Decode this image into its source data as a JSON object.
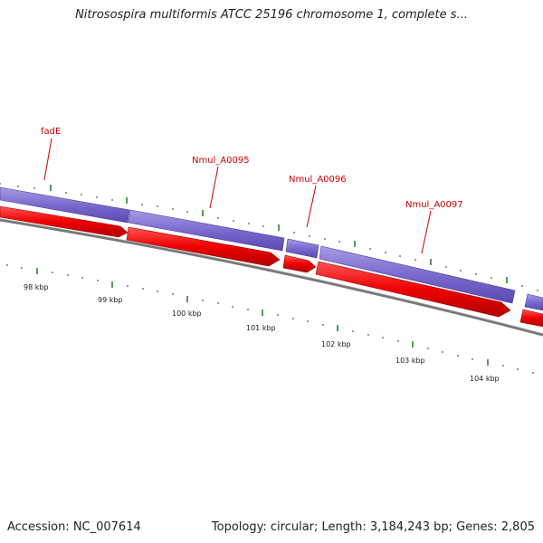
{
  "title": "Nitrosospira multiformis ATCC 25196 chromosome 1, complete s...",
  "footer": {
    "accession": "Accession: NC_007614",
    "summary": "Topology: circular; Length: 3,184,243 bp; Genes: 2,805"
  },
  "colors": {
    "gene_band": "#7766cc",
    "cds_arrow": "#ee0000",
    "backbone": "#777777",
    "tick": "#1a7a1a",
    "label": "#cc0000",
    "text": "#222222"
  },
  "gene_labels": [
    "fadE",
    "Nmul_A0095",
    "Nmul_A0096",
    "Nmul_A0097"
  ],
  "scale_labels": [
    "98 kbp",
    "99 kbp",
    "100 kbp",
    "101 kbp",
    "102 kbp",
    "103 kbp",
    "104 kbp"
  ]
}
